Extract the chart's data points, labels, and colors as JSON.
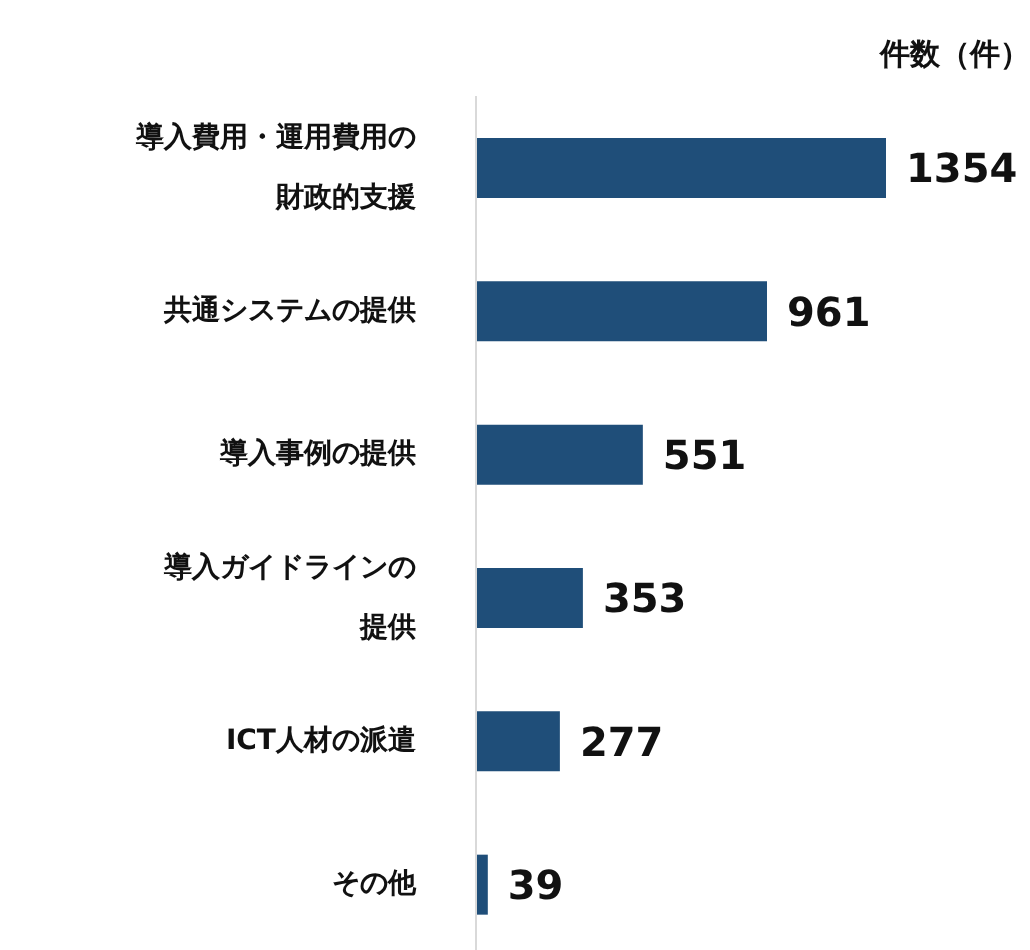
{
  "chart_data": {
    "type": "bar",
    "orientation": "horizontal",
    "xlabel": "件数（件）",
    "categories": [
      "導入費用・運用費用の財政的支援",
      "共通システムの提供",
      "導入事例の提供",
      "導入ガイドラインの提供",
      "ICT人材の派遣",
      "その他"
    ],
    "values": [
      1354,
      961,
      551,
      353,
      277,
      39
    ],
    "color": "#1f4e79",
    "data_labels": true,
    "tick_labels": "y"
  }
}
